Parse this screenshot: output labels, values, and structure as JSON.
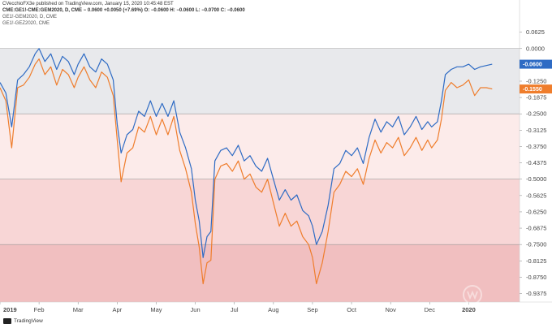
{
  "header": {
    "published": "CVecchioFX3e published on TradingView.com, January 15, 2020 10:45:48 EST",
    "symbol_line": "CME:GE1!-CME:GEM2020, D, CME  − 0.0600 +0.0050 (+7.69%) O: −0.0600 H: −0.0600 L: −0.0700 C: −0.0600",
    "legend_blue": "GE1!-GEM2020, D, CME",
    "legend_orange": "GE1!-GEZ2020, CME"
  },
  "footer": {
    "brand": "TradingView"
  },
  "colors": {
    "blue": "#2e6bc4",
    "orange": "#ef7d2c",
    "band_grey": "#e8e9ec",
    "band_light": "#fcebea",
    "band_mid": "#f8d6d6",
    "band_dark": "#f1bfc0"
  },
  "chart_data": {
    "type": "line",
    "y_range": [
      -0.97,
      0.08
    ],
    "y_ticks": [
      "0.0625",
      "0.0000",
      "-0.0625",
      "-0.1250",
      "-0.1875",
      "-0.2500",
      "-0.3125",
      "-0.3750",
      "-0.4375",
      "-0.5000",
      "-0.5625",
      "-0.6250",
      "-0.6875",
      "-0.7500",
      "-0.8125",
      "-0.8750",
      "-0.9375"
    ],
    "x_ticks": [
      "2019",
      "Feb",
      "Mar",
      "Apr",
      "May",
      "Jun",
      "Jul",
      "Aug",
      "Sep",
      "Oct",
      "Nov",
      "Dec",
      "2020"
    ],
    "x_range": [
      0,
      13.3
    ],
    "bands": [
      {
        "from": 0.0,
        "to": -0.25,
        "color": "#e8e9ec"
      },
      {
        "from": -0.25,
        "to": -0.5,
        "color": "#fcebea"
      },
      {
        "from": -0.5,
        "to": -0.75,
        "color": "#f8d6d6"
      },
      {
        "from": -0.75,
        "to": -0.97,
        "color": "#f1bfc0"
      }
    ],
    "series": [
      {
        "name": "GE1!-GEM2020, D, CME",
        "color": "#2e6bc4",
        "last_label": "-0.0600",
        "points": [
          [
            0,
            -0.13
          ],
          [
            0.15,
            -0.17
          ],
          [
            0.3,
            -0.3
          ],
          [
            0.45,
            -0.12
          ],
          [
            0.6,
            -0.1
          ],
          [
            0.75,
            -0.07
          ],
          [
            0.9,
            -0.02
          ],
          [
            1.0,
            0.0
          ],
          [
            1.15,
            -0.05
          ],
          [
            1.3,
            -0.02
          ],
          [
            1.45,
            -0.08
          ],
          [
            1.6,
            -0.03
          ],
          [
            1.75,
            -0.05
          ],
          [
            1.9,
            -0.1
          ],
          [
            2.0,
            -0.06
          ],
          [
            2.15,
            -0.02
          ],
          [
            2.3,
            -0.07
          ],
          [
            2.45,
            -0.09
          ],
          [
            2.6,
            -0.04
          ],
          [
            2.75,
            -0.06
          ],
          [
            2.9,
            -0.12
          ],
          [
            3.0,
            -0.29
          ],
          [
            3.1,
            -0.4
          ],
          [
            3.25,
            -0.33
          ],
          [
            3.4,
            -0.31
          ],
          [
            3.55,
            -0.24
          ],
          [
            3.7,
            -0.26
          ],
          [
            3.85,
            -0.2
          ],
          [
            4.0,
            -0.26
          ],
          [
            4.15,
            -0.21
          ],
          [
            4.3,
            -0.26
          ],
          [
            4.45,
            -0.2
          ],
          [
            4.6,
            -0.32
          ],
          [
            4.75,
            -0.38
          ],
          [
            4.9,
            -0.46
          ],
          [
            5.0,
            -0.58
          ],
          [
            5.1,
            -0.66
          ],
          [
            5.2,
            -0.8
          ],
          [
            5.3,
            -0.72
          ],
          [
            5.4,
            -0.7
          ],
          [
            5.5,
            -0.43
          ],
          [
            5.65,
            -0.39
          ],
          [
            5.8,
            -0.38
          ],
          [
            5.95,
            -0.41
          ],
          [
            6.1,
            -0.37
          ],
          [
            6.25,
            -0.43
          ],
          [
            6.4,
            -0.41
          ],
          [
            6.55,
            -0.45
          ],
          [
            6.7,
            -0.47
          ],
          [
            6.85,
            -0.42
          ],
          [
            7.0,
            -0.5
          ],
          [
            7.15,
            -0.58
          ],
          [
            7.3,
            -0.54
          ],
          [
            7.45,
            -0.58
          ],
          [
            7.6,
            -0.56
          ],
          [
            7.75,
            -0.62
          ],
          [
            7.9,
            -0.64
          ],
          [
            8.0,
            -0.68
          ],
          [
            8.1,
            -0.75
          ],
          [
            8.25,
            -0.7
          ],
          [
            8.4,
            -0.6
          ],
          [
            8.55,
            -0.46
          ],
          [
            8.7,
            -0.44
          ],
          [
            8.85,
            -0.39
          ],
          [
            9.0,
            -0.41
          ],
          [
            9.15,
            -0.38
          ],
          [
            9.3,
            -0.44
          ],
          [
            9.45,
            -0.34
          ],
          [
            9.6,
            -0.27
          ],
          [
            9.75,
            -0.32
          ],
          [
            9.9,
            -0.28
          ],
          [
            10.05,
            -0.3
          ],
          [
            10.2,
            -0.26
          ],
          [
            10.35,
            -0.33
          ],
          [
            10.5,
            -0.3
          ],
          [
            10.65,
            -0.26
          ],
          [
            10.8,
            -0.31
          ],
          [
            10.95,
            -0.28
          ],
          [
            11.05,
            -0.3
          ],
          [
            11.2,
            -0.28
          ],
          [
            11.3,
            -0.2
          ],
          [
            11.4,
            -0.1
          ],
          [
            11.55,
            -0.08
          ],
          [
            11.7,
            -0.07
          ],
          [
            11.85,
            -0.07
          ],
          [
            12.0,
            -0.06
          ],
          [
            12.15,
            -0.08
          ],
          [
            12.3,
            -0.07
          ],
          [
            12.45,
            -0.065
          ],
          [
            12.6,
            -0.06
          ]
        ]
      },
      {
        "name": "GE1!-GEZ2020, CME",
        "color": "#ef7d2c",
        "last_label": "-0.1550",
        "points": [
          [
            0,
            -0.15
          ],
          [
            0.15,
            -0.2
          ],
          [
            0.3,
            -0.38
          ],
          [
            0.45,
            -0.15
          ],
          [
            0.6,
            -0.14
          ],
          [
            0.75,
            -0.11
          ],
          [
            0.9,
            -0.06
          ],
          [
            1.0,
            -0.04
          ],
          [
            1.15,
            -0.1
          ],
          [
            1.3,
            -0.07
          ],
          [
            1.45,
            -0.14
          ],
          [
            1.6,
            -0.08
          ],
          [
            1.75,
            -0.1
          ],
          [
            1.9,
            -0.15
          ],
          [
            2.0,
            -0.11
          ],
          [
            2.15,
            -0.07
          ],
          [
            2.3,
            -0.12
          ],
          [
            2.45,
            -0.15
          ],
          [
            2.6,
            -0.09
          ],
          [
            2.75,
            -0.11
          ],
          [
            2.9,
            -0.18
          ],
          [
            3.0,
            -0.35
          ],
          [
            3.1,
            -0.51
          ],
          [
            3.25,
            -0.4
          ],
          [
            3.4,
            -0.38
          ],
          [
            3.55,
            -0.3
          ],
          [
            3.7,
            -0.32
          ],
          [
            3.85,
            -0.26
          ],
          [
            4.0,
            -0.33
          ],
          [
            4.15,
            -0.27
          ],
          [
            4.3,
            -0.33
          ],
          [
            4.45,
            -0.26
          ],
          [
            4.6,
            -0.39
          ],
          [
            4.75,
            -0.46
          ],
          [
            4.9,
            -0.55
          ],
          [
            5.0,
            -0.67
          ],
          [
            5.1,
            -0.76
          ],
          [
            5.2,
            -0.9
          ],
          [
            5.3,
            -0.82
          ],
          [
            5.4,
            -0.81
          ],
          [
            5.5,
            -0.5
          ],
          [
            5.65,
            -0.45
          ],
          [
            5.8,
            -0.44
          ],
          [
            5.95,
            -0.47
          ],
          [
            6.1,
            -0.43
          ],
          [
            6.25,
            -0.5
          ],
          [
            6.4,
            -0.48
          ],
          [
            6.55,
            -0.53
          ],
          [
            6.7,
            -0.55
          ],
          [
            6.85,
            -0.5
          ],
          [
            7.0,
            -0.59
          ],
          [
            7.15,
            -0.68
          ],
          [
            7.3,
            -0.63
          ],
          [
            7.45,
            -0.68
          ],
          [
            7.6,
            -0.66
          ],
          [
            7.75,
            -0.72
          ],
          [
            7.9,
            -0.75
          ],
          [
            8.0,
            -0.8
          ],
          [
            8.1,
            -0.9
          ],
          [
            8.25,
            -0.82
          ],
          [
            8.4,
            -0.7
          ],
          [
            8.55,
            -0.55
          ],
          [
            8.7,
            -0.52
          ],
          [
            8.85,
            -0.47
          ],
          [
            9.0,
            -0.49
          ],
          [
            9.15,
            -0.46
          ],
          [
            9.3,
            -0.52
          ],
          [
            9.45,
            -0.42
          ],
          [
            9.6,
            -0.35
          ],
          [
            9.75,
            -0.4
          ],
          [
            9.9,
            -0.36
          ],
          [
            10.05,
            -0.38
          ],
          [
            10.2,
            -0.34
          ],
          [
            10.35,
            -0.41
          ],
          [
            10.5,
            -0.38
          ],
          [
            10.65,
            -0.34
          ],
          [
            10.8,
            -0.39
          ],
          [
            10.95,
            -0.35
          ],
          [
            11.05,
            -0.38
          ],
          [
            11.2,
            -0.35
          ],
          [
            11.3,
            -0.27
          ],
          [
            11.4,
            -0.16
          ],
          [
            11.55,
            -0.13
          ],
          [
            11.7,
            -0.15
          ],
          [
            11.85,
            -0.14
          ],
          [
            12.0,
            -0.12
          ],
          [
            12.15,
            -0.18
          ],
          [
            12.3,
            -0.15
          ],
          [
            12.45,
            -0.15
          ],
          [
            12.6,
            -0.155
          ]
        ]
      }
    ]
  }
}
